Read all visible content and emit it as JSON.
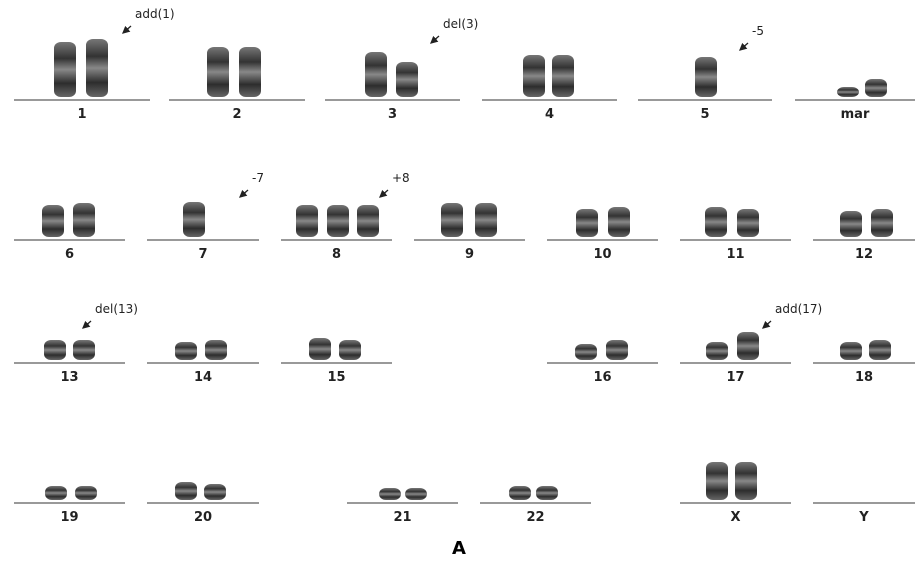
{
  "figure": {
    "groups": [
      {
        "label": "1",
        "annotation": "add(1)"
      },
      {
        "label": "2"
      },
      {
        "label": "3",
        "annotation": "del(3)"
      },
      {
        "label": "4"
      },
      {
        "label": "5",
        "annotation": "-5"
      },
      {
        "label": "mar"
      },
      {
        "label": "6"
      },
      {
        "label": "7",
        "annotation": "-7"
      },
      {
        "label": "8",
        "annotation": "+8"
      },
      {
        "label": "9"
      },
      {
        "label": "10"
      },
      {
        "label": "11"
      },
      {
        "label": "12"
      },
      {
        "label": "13",
        "annotation": "del(13)"
      },
      {
        "label": "14"
      },
      {
        "label": "15"
      },
      {
        "label": "16"
      },
      {
        "label": "17",
        "annotation": "add(17)"
      },
      {
        "label": "18"
      },
      {
        "label": "19"
      },
      {
        "label": "20"
      },
      {
        "label": "21"
      },
      {
        "label": "22"
      },
      {
        "label": "X"
      },
      {
        "label": "Y"
      }
    ],
    "panel_label": "A"
  }
}
